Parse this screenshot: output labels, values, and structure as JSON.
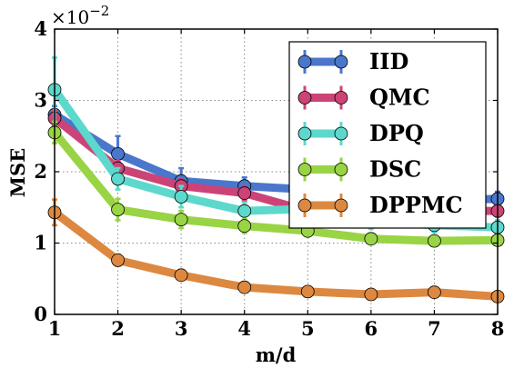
{
  "chart_data": {
    "type": "line",
    "xlabel": "m/d",
    "ylabel": "MSE",
    "y_multiplier": "×10",
    "y_exponent": "−2",
    "x": [
      1,
      2,
      3,
      4,
      5,
      6,
      7,
      8
    ],
    "xlim": [
      1,
      8
    ],
    "ylim": [
      0,
      4
    ],
    "x_ticks": [
      "1",
      "2",
      "3",
      "4",
      "5",
      "6",
      "7",
      "8"
    ],
    "y_ticks": [
      "0",
      "1",
      "2",
      "3",
      "4"
    ],
    "grid": true,
    "legend_position": "top-right",
    "series": [
      {
        "name": "IID",
        "color": "#4a77cc",
        "values": [
          2.8,
          2.25,
          1.87,
          1.8,
          1.75,
          1.62,
          1.6,
          1.62
        ],
        "errors": [
          0.12,
          0.25,
          0.18,
          0.12,
          0.12,
          0.1,
          0.1,
          0.1
        ]
      },
      {
        "name": "QMC",
        "color": "#cc4477",
        "values": [
          2.75,
          2.05,
          1.8,
          1.7,
          1.45,
          1.45,
          1.45,
          1.45
        ],
        "errors": [
          0.1,
          0.1,
          0.1,
          0.1,
          0.08,
          0.08,
          0.08,
          0.08
        ]
      },
      {
        "name": "DPQ",
        "color": "#5dd8cc",
        "values": [
          3.15,
          1.9,
          1.65,
          1.45,
          1.48,
          1.3,
          1.25,
          1.22
        ],
        "errors": [
          0.45,
          0.15,
          0.15,
          0.12,
          0.1,
          0.1,
          0.1,
          0.1
        ]
      },
      {
        "name": "DSC",
        "color": "#99d444",
        "values": [
          2.55,
          1.47,
          1.33,
          1.24,
          1.17,
          1.06,
          1.03,
          1.04
        ],
        "errors": [
          0.15,
          0.15,
          0.12,
          0.1,
          0.08,
          0.05,
          0.05,
          0.05
        ]
      },
      {
        "name": "DPPMC",
        "color": "#dd8840",
        "values": [
          1.43,
          0.76,
          0.55,
          0.38,
          0.32,
          0.28,
          0.31,
          0.25
        ],
        "errors": [
          0.18,
          0.08,
          0.05,
          0.05,
          0.04,
          0.04,
          0.04,
          0.04
        ]
      }
    ]
  }
}
